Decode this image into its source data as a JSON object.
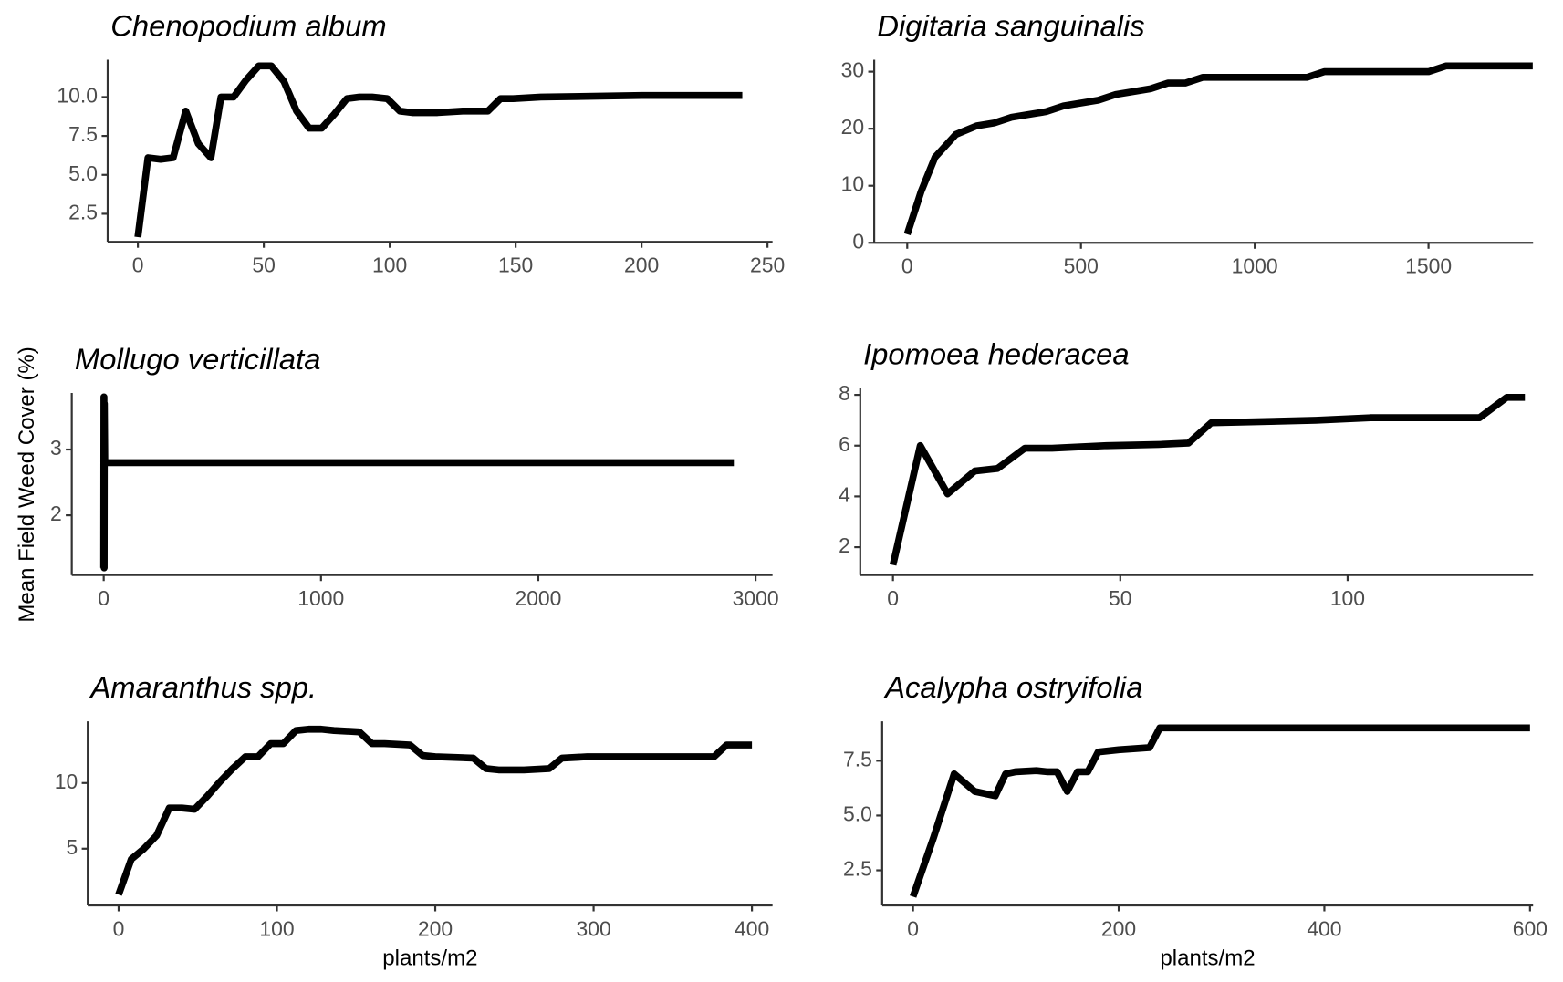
{
  "chart_data": [
    {
      "type": "line",
      "title": "Chenopodium album",
      "xlim": [
        -12,
        252
      ],
      "ylim": [
        0.7,
        12.4
      ],
      "xticks": [
        0,
        50,
        100,
        150,
        200,
        250
      ],
      "yticks": [
        2.5,
        {
          "value": 5,
          "label": "5.0"
        },
        7.5,
        {
          "value": 10,
          "label": "10.0"
        }
      ],
      "color": "#000000",
      "x": [
        0,
        4,
        9,
        14,
        19,
        24,
        29,
        33,
        38,
        43,
        48,
        53,
        58,
        63,
        68,
        73,
        78,
        83,
        88,
        93,
        99,
        104,
        109,
        119,
        129,
        139,
        144,
        149,
        160,
        200,
        240
      ],
      "values": [
        1.0,
        6.1,
        6.0,
        6.1,
        9.1,
        7.0,
        6.1,
        10.0,
        10.0,
        11.1,
        12.0,
        12.0,
        11.0,
        9.1,
        8.0,
        8.0,
        8.9,
        9.9,
        10.0,
        10.0,
        9.9,
        9.1,
        9.0,
        9.0,
        9.1,
        9.1,
        9.9,
        9.9,
        10.0,
        10.1,
        10.1
      ]
    },
    {
      "type": "line",
      "title": "Digitaria sanguinalis",
      "xlim": [
        -95,
        1801
      ],
      "ylim": [
        0,
        32.1
      ],
      "xticks": [
        0,
        500,
        1000,
        1500
      ],
      "yticks": [
        0,
        10,
        20,
        30
      ],
      "color": "#000000",
      "x": [
        0,
        40,
        80,
        140,
        200,
        250,
        300,
        350,
        400,
        450,
        500,
        550,
        600,
        650,
        700,
        750,
        800,
        850,
        900,
        1000,
        1100,
        1150,
        1200,
        1300,
        1400,
        1500,
        1550,
        1600,
        1700,
        1800
      ],
      "values": [
        1.5,
        9,
        15,
        19,
        20.5,
        21,
        22,
        22.5,
        23,
        24,
        24.5,
        25,
        26,
        26.5,
        27,
        28,
        28,
        29,
        29,
        29,
        29,
        29,
        30,
        30,
        30,
        30,
        31,
        31,
        31,
        31
      ]
    },
    {
      "type": "line",
      "title": "Mollugo verticillata",
      "xlim": [
        -147,
        3078
      ],
      "ylim": [
        1.09,
        3.86
      ],
      "xticks": [
        0,
        1000,
        2000,
        3000
      ],
      "yticks": [
        2,
        3
      ],
      "color": "#000000",
      "ylabel": "Mean Field Weed Cover (%)",
      "x": [
        0,
        1,
        2,
        3,
        5,
        10,
        2900
      ],
      "values": [
        1.2,
        3.8,
        1.2,
        3.7,
        2.8,
        2.8,
        2.8
      ]
    },
    {
      "type": "line",
      "title": "Ipomoea hederacea",
      "xlim": [
        -7.2,
        140.8
      ],
      "ylim": [
        0.9,
        8.27
      ],
      "xticks": [
        0,
        50,
        100
      ],
      "yticks": [
        2,
        4,
        6,
        8
      ],
      "color": "#000000",
      "x": [
        0,
        6,
        12,
        18,
        23,
        29,
        35,
        47,
        59,
        65,
        70,
        82,
        93,
        105,
        117,
        129,
        135,
        139
      ],
      "values": [
        1.3,
        6,
        4.1,
        5,
        5.1,
        5.9,
        5.9,
        6,
        6.05,
        6.1,
        6.9,
        6.95,
        7,
        7.1,
        7.1,
        7.1,
        7.9,
        7.9
      ]
    },
    {
      "type": "line",
      "title": "Amaranthus spp.",
      "xlim": [
        -19.5,
        413
      ],
      "ylim": [
        0.68,
        14.7
      ],
      "xticks": [
        0,
        100,
        200,
        300,
        400
      ],
      "yticks": [
        5,
        10
      ],
      "color": "#000000",
      "xlabel": "plants/m2",
      "x": [
        0,
        8,
        16,
        24,
        32,
        40,
        48,
        56,
        64,
        72,
        80,
        88,
        96,
        104,
        112,
        120,
        128,
        136,
        152,
        160,
        168,
        184,
        192,
        200,
        224,
        232,
        240,
        256,
        272,
        280,
        296,
        320,
        352,
        376,
        384,
        400
      ],
      "values": [
        1.5,
        4.2,
        5,
        6,
        8.1,
        8.1,
        8,
        9,
        10.1,
        11.1,
        12,
        12,
        13,
        13,
        14,
        14.1,
        14.1,
        14,
        13.9,
        13,
        13,
        12.9,
        12.1,
        12,
        11.9,
        11.1,
        11,
        11,
        11.1,
        11.9,
        12,
        12,
        12,
        12,
        12.9,
        12.9
      ]
    },
    {
      "type": "line",
      "title": "Acalypha ostryifolia",
      "xlim": [
        -30,
        603
      ],
      "ylim": [
        0.9,
        9.3
      ],
      "xticks": [
        0,
        200,
        400,
        600
      ],
      "yticks": [
        2.5,
        {
          "value": 5,
          "label": "5.0"
        },
        7.5
      ],
      "color": "#000000",
      "xlabel": "plants/m2",
      "x": [
        0,
        20,
        40,
        60,
        80,
        90,
        100,
        120,
        130,
        140,
        150,
        160,
        170,
        180,
        200,
        230,
        240,
        300,
        400,
        500,
        600
      ],
      "values": [
        1.3,
        4,
        6.9,
        6.1,
        5.9,
        6.9,
        7,
        7.05,
        7,
        7,
        6.1,
        7,
        7,
        7.9,
        8,
        8.1,
        9,
        9,
        9,
        9,
        9
      ]
    }
  ]
}
